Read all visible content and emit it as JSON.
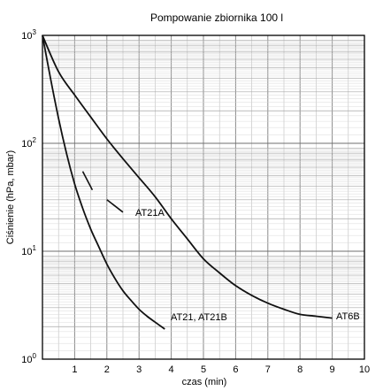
{
  "chart_data": {
    "type": "line",
    "title": "Pompowanie zbiornika 100 l",
    "xlabel": "czas (min)",
    "ylabel": "Ciśnienie (hPa, mbar)",
    "xlim": [
      0,
      10
    ],
    "ylim": [
      1,
      1000
    ],
    "y_scale": "log",
    "grid": true,
    "x_ticks": [
      "1",
      "2",
      "3",
      "4",
      "5",
      "6",
      "7",
      "8",
      "9",
      "10"
    ],
    "y_ticks": [
      {
        "base": "10",
        "exp": "0",
        "value": 1
      },
      {
        "base": "10",
        "exp": "1",
        "value": 10
      },
      {
        "base": "10",
        "exp": "2",
        "value": 100
      },
      {
        "base": "10",
        "exp": "3",
        "value": 1000
      }
    ],
    "series": [
      {
        "name": "AT6B",
        "x": [
          0,
          0.5,
          1.0,
          1.5,
          2.0,
          2.5,
          3.0,
          3.5,
          4.0,
          4.5,
          5.0,
          5.5,
          6.0,
          6.5,
          7.0,
          7.5,
          8.0,
          8.5,
          9.0
        ],
        "y": [
          1000,
          460,
          280,
          175,
          110,
          72,
          48,
          32,
          20,
          13,
          8.5,
          6.3,
          4.8,
          3.9,
          3.3,
          2.9,
          2.6,
          2.5,
          2.4
        ]
      },
      {
        "name": "AT21, AT21B",
        "x": [
          0,
          0.25,
          0.5,
          0.75,
          1.0,
          1.25,
          1.5,
          1.75,
          2.0,
          2.25,
          2.5,
          2.75,
          3.0,
          3.25,
          3.5,
          3.8
        ],
        "y": [
          1000,
          400,
          170,
          80,
          42,
          25,
          16,
          11,
          7.6,
          5.6,
          4.3,
          3.5,
          2.9,
          2.5,
          2.2,
          1.9
        ]
      },
      {
        "name": "AT21A",
        "segments": [
          {
            "x": [
              1.25,
              1.55
            ],
            "y": [
              55,
              37
            ]
          },
          {
            "x": [
              2.0,
              2.5
            ],
            "y": [
              30,
              23
            ]
          }
        ]
      }
    ]
  }
}
